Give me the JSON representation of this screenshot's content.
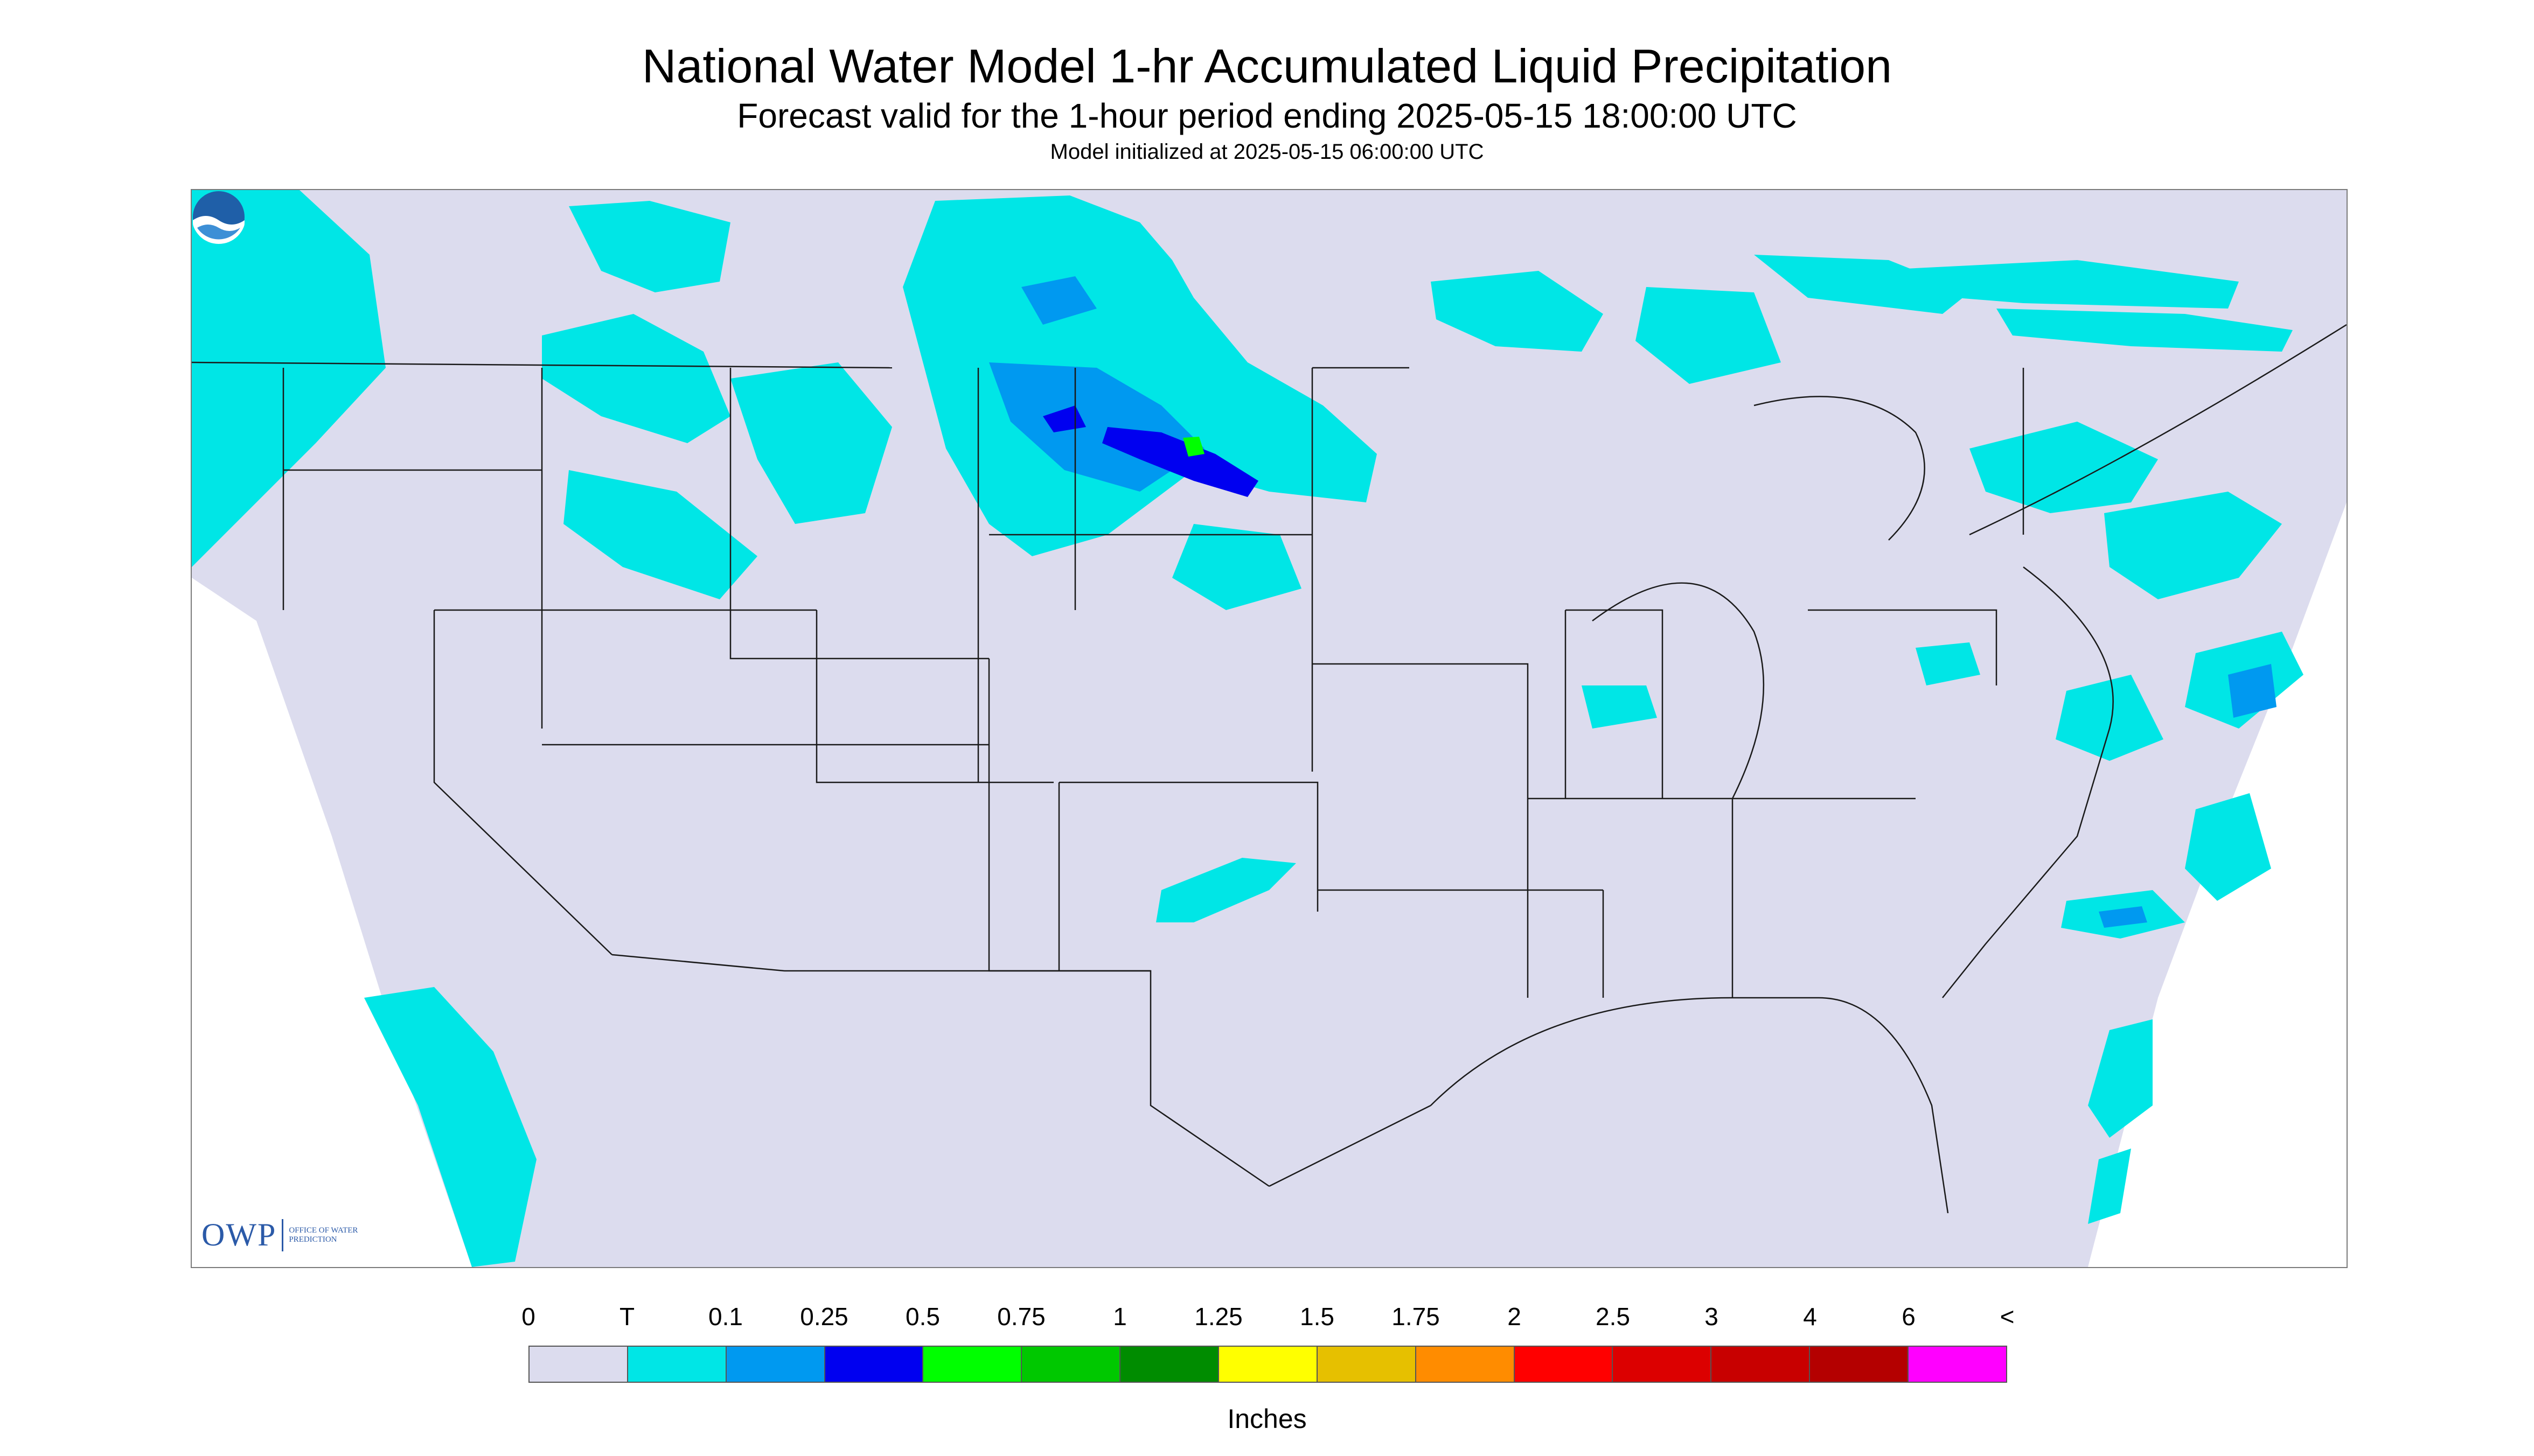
{
  "header": {
    "title": "National Water Model 1-hr Accumulated Liquid Precipitation",
    "subtitle": "Forecast valid for the 1-hour period ending 2025-05-15 18:00:00 UTC",
    "init": "Model initialized at 2025-05-15 06:00:00 UTC"
  },
  "logo": {
    "owp_text": "OWP",
    "owp_subtext": "OFFICE OF WATER PREDICTION",
    "noaa_text": "NOAA"
  },
  "map": {
    "background_color": "#dcdcee",
    "outside_color": "#ffffff",
    "border_color": "#1a1a1a",
    "icon": "precipitation-map"
  },
  "legend": {
    "unit_label": "Inches",
    "ticks": [
      "0",
      "T",
      "0.1",
      "0.25",
      "0.5",
      "0.75",
      "1",
      "1.25",
      "1.5",
      "1.75",
      "2",
      "2.5",
      "3",
      "4",
      "6",
      "<"
    ],
    "colors": [
      "#dcdcee",
      "#00e6e6",
      "#0099f0",
      "#0000f0",
      "#00ff00",
      "#00c800",
      "#008c00",
      "#ffff00",
      "#e6c000",
      "#ff8c00",
      "#ff0000",
      "#dc0000",
      "#c80000",
      "#b40000",
      "#ff00ff",
      "#9955cc"
    ]
  }
}
